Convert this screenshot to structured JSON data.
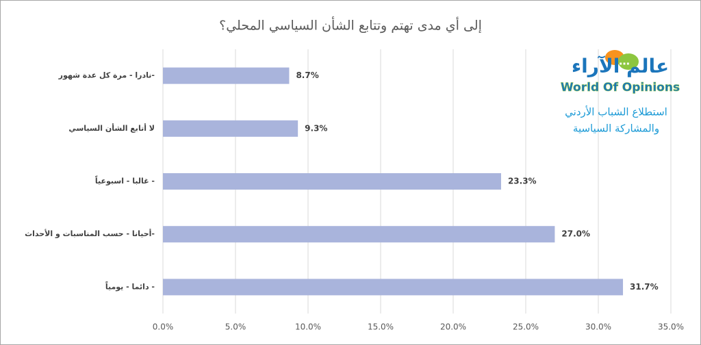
{
  "chart_data": {
    "type": "bar",
    "orientation": "horizontal",
    "title": "إلى أي مدى تهتم وتتابع الشأن السياسي المحلي؟",
    "categories": [
      "نادرا - مرة كل عدة شهور-",
      "لا أتابع الشأن السياسي",
      "غالبا - اسبوعياً -",
      "أحيانا - حسب المناسبات و الأحداث-",
      "دائما - يومياً -"
    ],
    "values": [
      8.7,
      9.3,
      23.3,
      27.0,
      31.7
    ],
    "value_labels": [
      "8.7%",
      "9.3%",
      "23.3%",
      "27.0%",
      "31.7%"
    ],
    "color": "#a9b4dc",
    "xlim": [
      0,
      35
    ],
    "xticks": [
      {
        "value": 0,
        "label": "0.0%"
      },
      {
        "value": 5,
        "label": "5.0%"
      },
      {
        "value": 10,
        "label": "10.0%"
      },
      {
        "value": 15,
        "label": "15.0%"
      },
      {
        "value": 20,
        "label": "20.0%"
      },
      {
        "value": 25,
        "label": "25.0%"
      },
      {
        "value": 30,
        "label": "30.0%"
      },
      {
        "value": 35,
        "label": "35.0%"
      }
    ],
    "grid": true,
    "annotations": [
      "عالم الآراء",
      "World Of Opinions",
      "استطلاع الشباب الأردني",
      "والمشاركة السياسية"
    ]
  }
}
